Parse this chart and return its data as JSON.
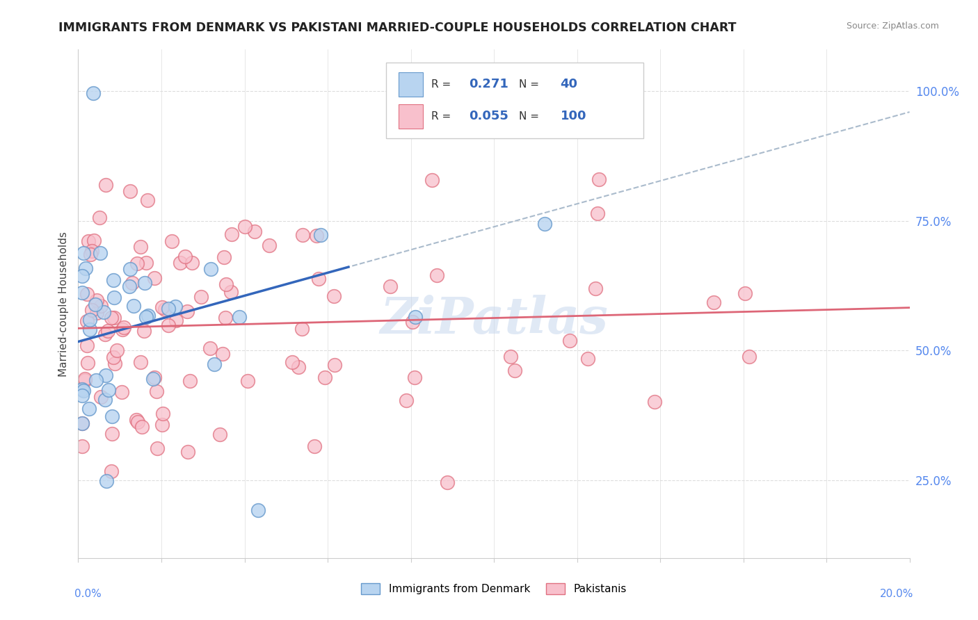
{
  "title": "IMMIGRANTS FROM DENMARK VS PAKISTANI MARRIED-COUPLE HOUSEHOLDS CORRELATION CHART",
  "source": "Source: ZipAtlas.com",
  "ylabel": "Married-couple Households",
  "legend_blue_r": "0.271",
  "legend_blue_n": "40",
  "legend_pink_r": "0.055",
  "legend_pink_n": "100",
  "blue_fill": "#b8d4f0",
  "blue_edge": "#6699cc",
  "pink_fill": "#f8c0cc",
  "pink_edge": "#e07080",
  "blue_line_color": "#3366bb",
  "dashed_line_color": "#aabbcc",
  "pink_line_color": "#dd6677",
  "watermark_color": "#c8d8ee",
  "grid_color": "#dddddd",
  "right_tick_color": "#5588ee",
  "title_color": "#222222",
  "source_color": "#888888"
}
